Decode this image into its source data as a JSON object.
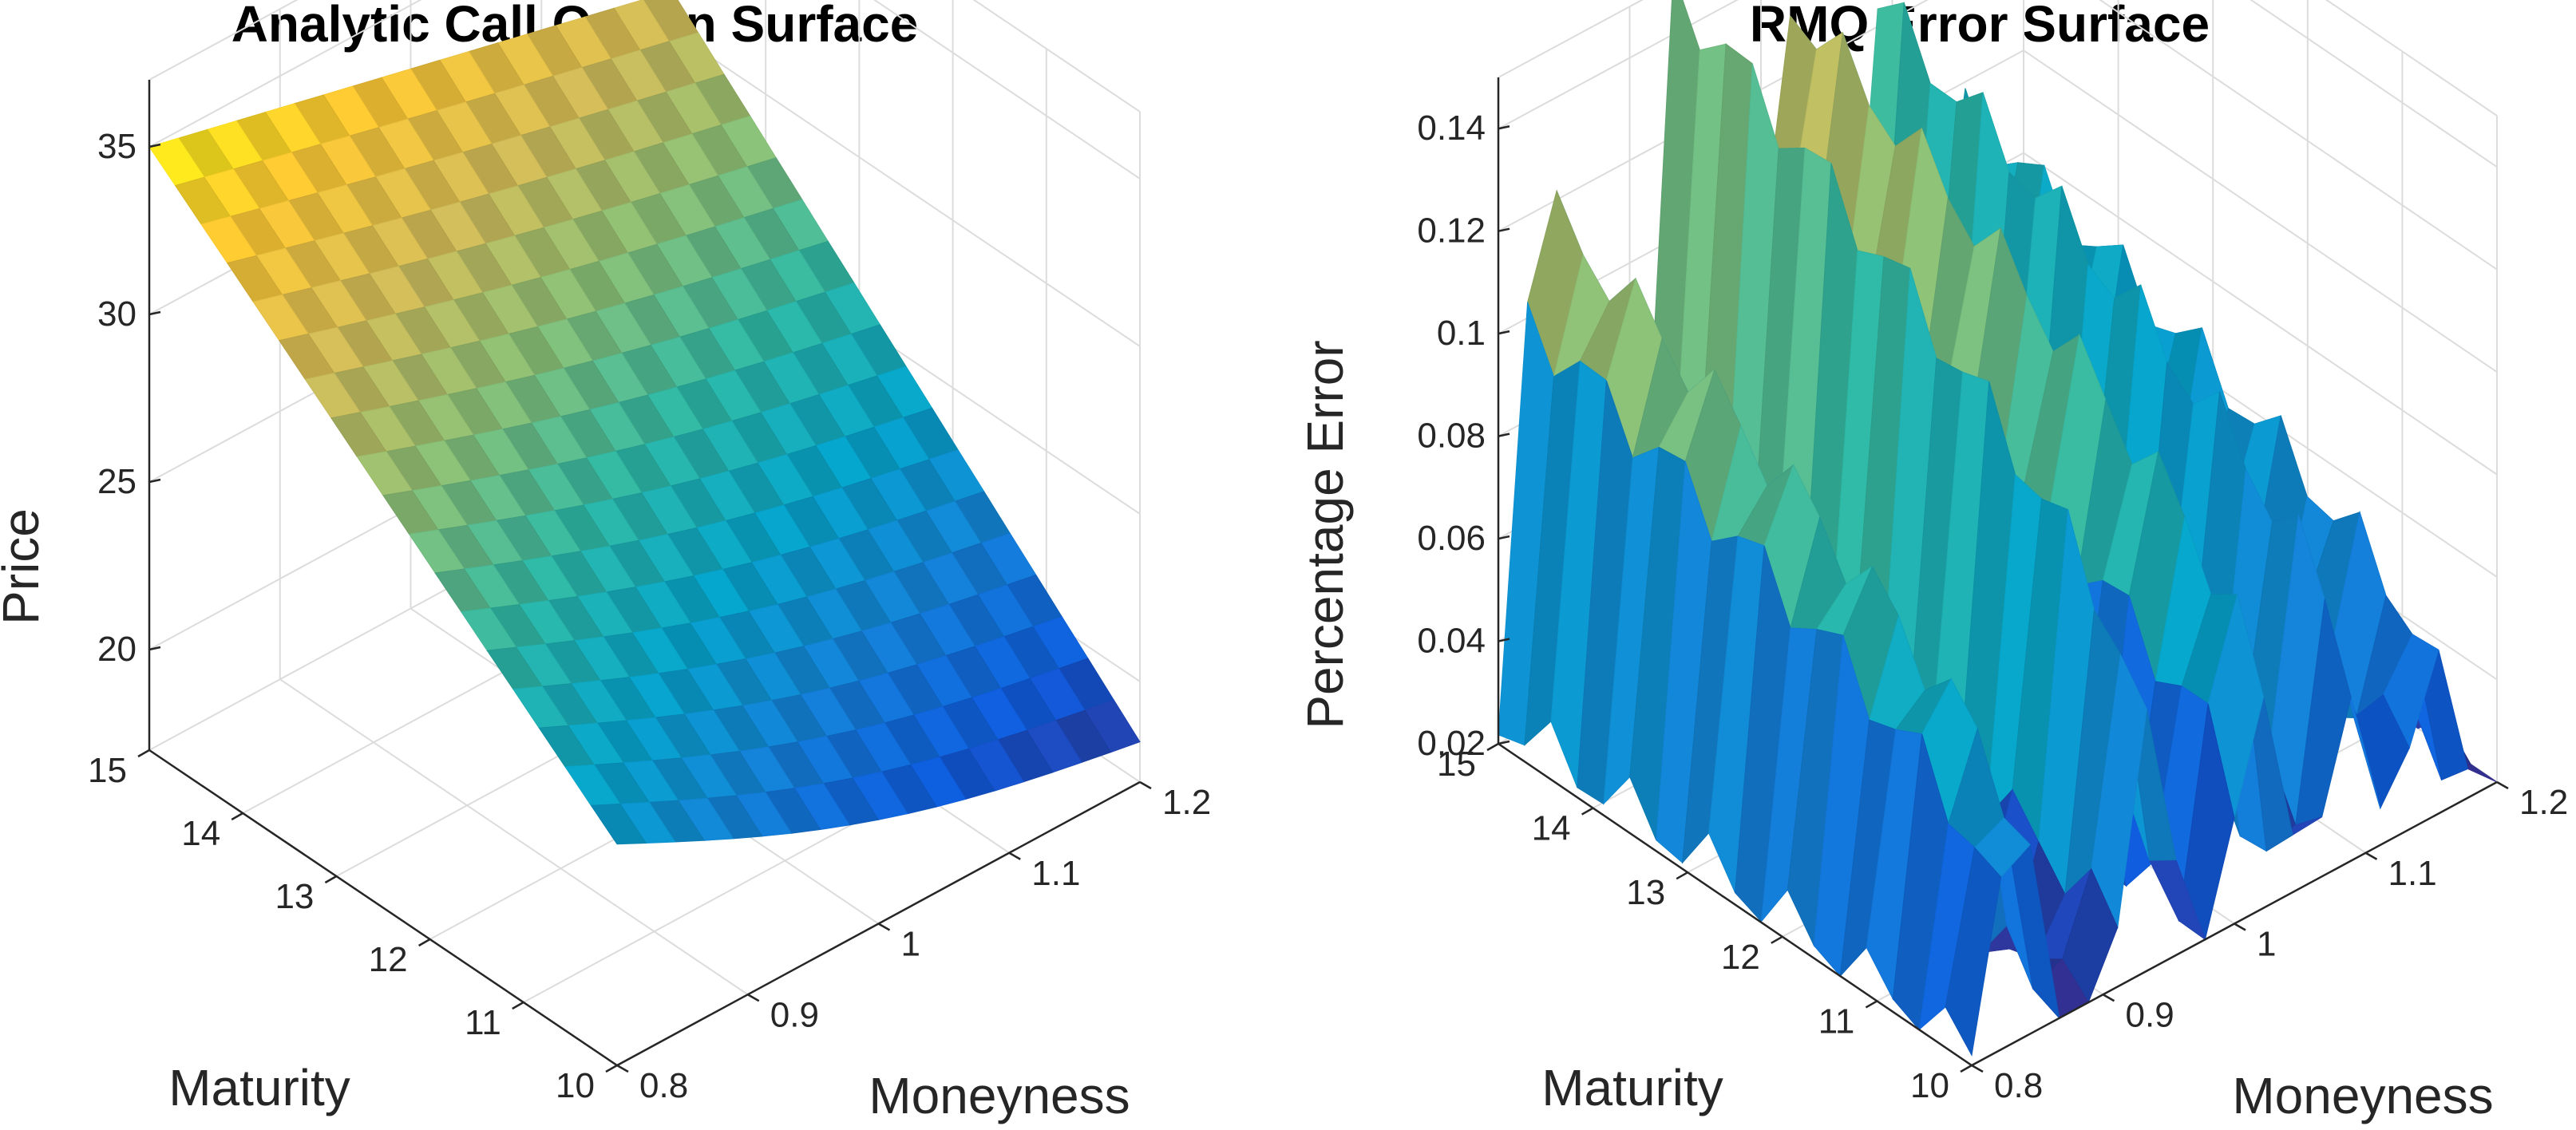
{
  "chart_data": [
    {
      "type": "surface",
      "title": "Analytic Call Option Surface",
      "xlabel": "Moneyness",
      "ylabel": "Maturity",
      "zlabel": "Price",
      "xlim": [
        0.8,
        1.2
      ],
      "ylim": [
        10,
        15
      ],
      "zlim": [
        17,
        37
      ],
      "x_ticks": [
        0.8,
        0.9,
        1,
        1.1,
        1.2
      ],
      "x_tick_labels": [
        "0.8",
        "0.9",
        "1",
        "1.1",
        "1.2"
      ],
      "y_ticks": [
        10,
        11,
        12,
        13,
        14,
        15
      ],
      "y_tick_labels": [
        "10",
        "11",
        "12",
        "13",
        "14",
        "15"
      ],
      "z_ticks": [
        20,
        25,
        30,
        35
      ],
      "z_tick_labels": [
        "20",
        "25",
        "30",
        "35"
      ],
      "corner_values": {
        "m0.8_t10": 23.6,
        "m0.8_t15": 35.0,
        "m1.2_t10": 18.2,
        "m1.2_t15": 31.2
      },
      "colormap": "parula"
    },
    {
      "type": "surface",
      "title": "RMQ Error Surface",
      "xlabel": "Moneyness",
      "ylabel": "Percentage Error",
      "zlabel": "Percentage Error",
      "xlim": [
        0.8,
        1.2
      ],
      "ylim": [
        10,
        15
      ],
      "zlim": [
        0.02,
        0.15
      ],
      "x_ticks": [
        0.8,
        0.9,
        1,
        1.1,
        1.2
      ],
      "x_tick_labels": [
        "0.8",
        "0.9",
        "1",
        "1.1",
        "1.2"
      ],
      "y_ticks": [
        10,
        11,
        12,
        13,
        14,
        15
      ],
      "y_tick_labels": [
        "10",
        "11",
        "12",
        "13",
        "14",
        "15"
      ],
      "z_ticks": [
        0.02,
        0.04,
        0.06,
        0.08,
        0.1,
        0.12,
        0.14
      ],
      "z_tick_labels": [
        "0.02",
        "0.04",
        "0.06",
        "0.08",
        "0.1",
        "0.12",
        "0.14"
      ],
      "ridge_peak_moneyness": [
        0.835,
        0.935,
        1.015,
        1.09,
        1.15
      ],
      "ridge_peak_values": [
        0.14,
        0.15,
        0.15,
        0.125,
        0.1
      ],
      "trough_value": 0.02,
      "colormap": "parula"
    }
  ],
  "labels": {
    "maturity": "Maturity"
  },
  "colormap_stops": [
    "#352a87",
    "#0f5cdd",
    "#1481d6",
    "#06a4ca",
    "#2eb7a4",
    "#87bf77",
    "#d1bb59",
    "#fec832",
    "#f9fb0e"
  ]
}
